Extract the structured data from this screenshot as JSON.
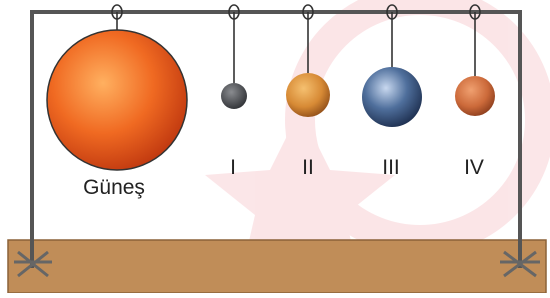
{
  "objects": [
    {
      "label": "Güneş"
    },
    {
      "label": "I"
    },
    {
      "label": "II"
    },
    {
      "label": "III"
    },
    {
      "label": "IV"
    }
  ]
}
